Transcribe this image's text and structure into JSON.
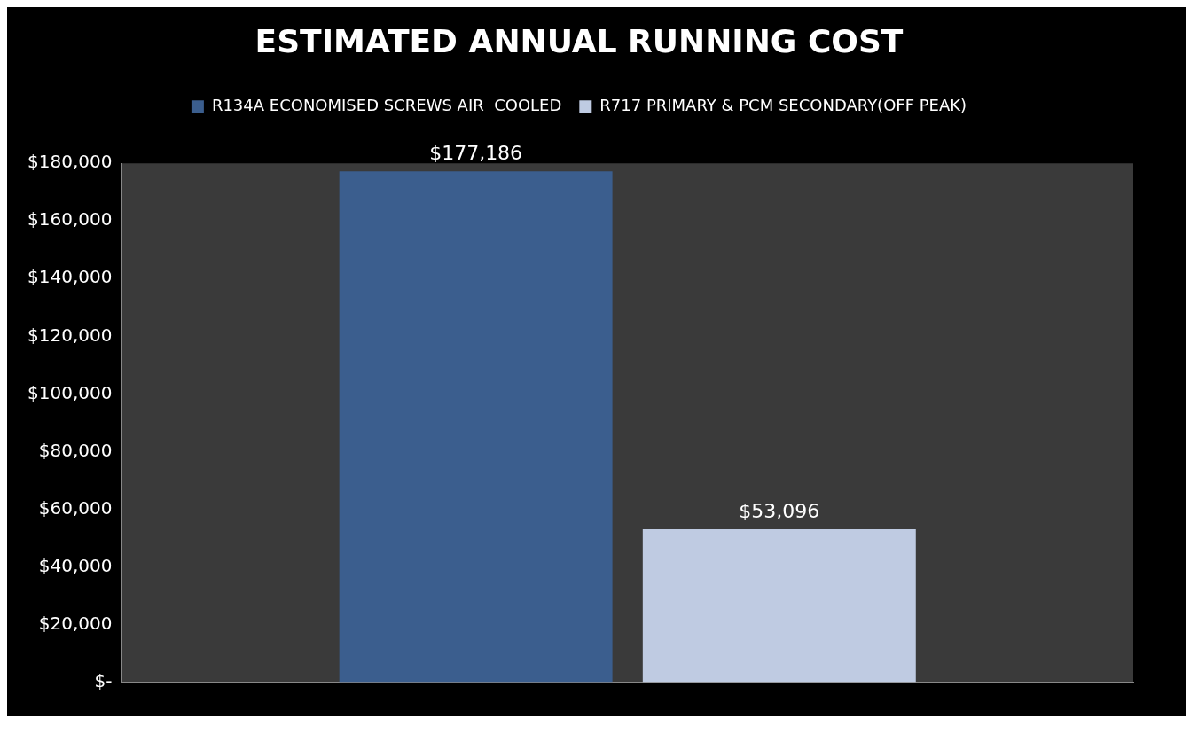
{
  "chart_data": {
    "type": "bar",
    "title": "ESTIMATED ANNUAL RUNNING COST",
    "categories": [
      null
    ],
    "series": [
      {
        "name": "R134A ECONOMISED SCREWS AIR  COOLED",
        "color": "#3b5e8e",
        "values": [
          177186
        ],
        "value_labels": [
          "$177,186"
        ]
      },
      {
        "name": "R717 PRIMARY & PCM SECONDARY(OFF PEAK)",
        "color": "#bfcbe2",
        "values": [
          53096
        ],
        "value_labels": [
          "$53,096"
        ]
      }
    ],
    "ylim": [
      0,
      180000
    ],
    "yticks": [
      {
        "value": 0,
        "label": "$-"
      },
      {
        "value": 20000,
        "label": "$20,000"
      },
      {
        "value": 40000,
        "label": "$40,000"
      },
      {
        "value": 60000,
        "label": "$60,000"
      },
      {
        "value": 80000,
        "label": "$80,000"
      },
      {
        "value": 100000,
        "label": "$100,000"
      },
      {
        "value": 120000,
        "label": "$120,000"
      },
      {
        "value": 140000,
        "label": "$140,000"
      },
      {
        "value": 160000,
        "label": "$160,000"
      },
      {
        "value": 180000,
        "label": "$180,000"
      }
    ],
    "grid": false,
    "legend": "top"
  }
}
